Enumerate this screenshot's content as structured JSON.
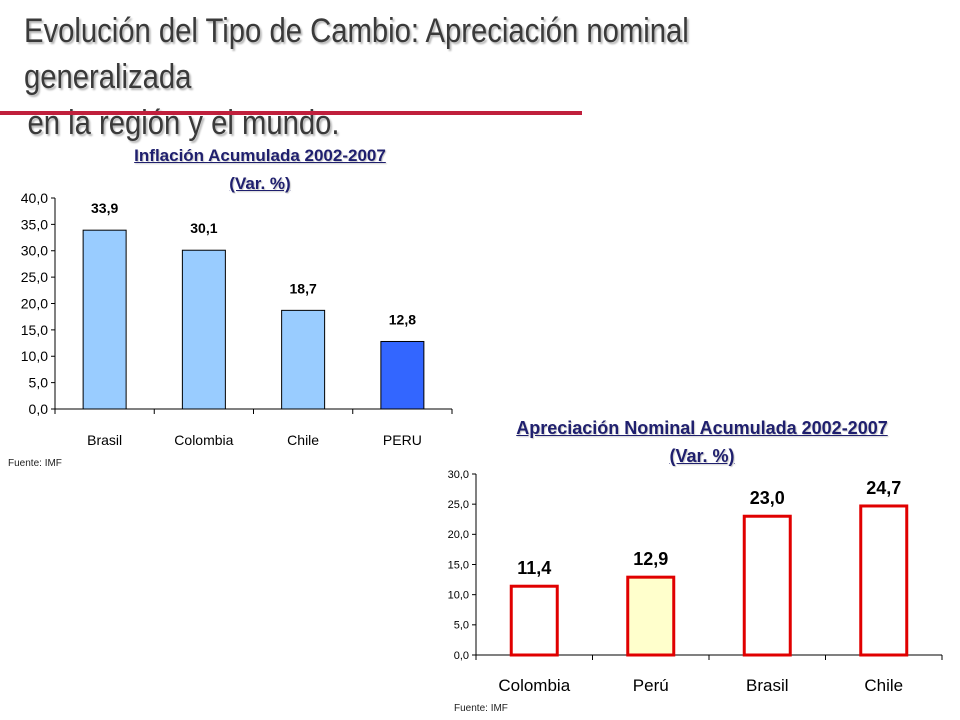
{
  "title": {
    "line1": "Evolución del Tipo de Cambio: Apreciación nominal generalizada",
    "line2": "en la región y el mundo."
  },
  "colors": {
    "title_rule": "#c01f3c",
    "chart1_bar": "#99ccff",
    "chart1_highlight": "#3366ff",
    "chart2_bar": "#ffffff",
    "chart2_highlight": "#ffffcc",
    "chart2_border": "#e00000"
  },
  "chart_data": [
    {
      "type": "bar",
      "title": "Inflación Acumulada 2002-2007",
      "subtitle": "(Var. %)",
      "categories": [
        "Brasil",
        "Colombia",
        "Chile",
        "PERU"
      ],
      "values": [
        33.9,
        30.1,
        18.7,
        12.8
      ],
      "value_labels": [
        "33,9",
        "30,1",
        "18,7",
        "12,8"
      ],
      "highlight": "PERU",
      "ylim": [
        0,
        40
      ],
      "yticks": [
        "0,0",
        "5,0",
        "10,0",
        "15,0",
        "20,0",
        "25,0",
        "30,0",
        "35,0",
        "40,0"
      ],
      "grid": false,
      "source": "Fuente: IMF"
    },
    {
      "type": "bar",
      "title": "Apreciación Nominal Acumulada 2002-2007",
      "subtitle": "(Var. %)",
      "categories": [
        "Colombia",
        "Perú",
        "Brasil",
        "Chile"
      ],
      "values": [
        11.4,
        12.9,
        23.0,
        24.7
      ],
      "value_labels": [
        "11,4",
        "12,9",
        "23,0",
        "24,7"
      ],
      "highlight": "Perú",
      "ylim": [
        0,
        30
      ],
      "yticks": [
        "0,0",
        "5,0",
        "10,0",
        "15,0",
        "20,0",
        "25,0",
        "30,0"
      ],
      "grid": false,
      "source": "Fuente: IMF"
    }
  ]
}
